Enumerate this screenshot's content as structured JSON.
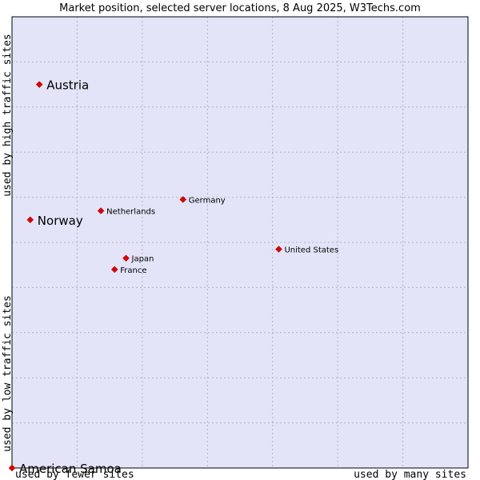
{
  "chart_data": {
    "type": "scatter",
    "title": "Market position, selected server locations, 8 Aug 2025, W3Techs.com",
    "xlabel_low": "used by fewer sites",
    "xlabel_high": "used by many sites",
    "ylabel_low": "used by low traffic sites",
    "ylabel_high": "used by high traffic sites",
    "xlim": [
      0,
      100
    ],
    "ylim": [
      0,
      100
    ],
    "grid": true,
    "colors": {
      "plot_background": "#e4e4f8",
      "grid": "#b0b0cc",
      "point": "#e00000"
    },
    "points": [
      {
        "name": "Austria",
        "x": 6,
        "y": 85,
        "emphasis": true
      },
      {
        "name": "Norway",
        "x": 4,
        "y": 55,
        "emphasis": true
      },
      {
        "name": "American Samoa",
        "x": 0,
        "y": 0,
        "emphasis": true
      },
      {
        "name": "Netherlands",
        "x": 19.5,
        "y": 57,
        "emphasis": false
      },
      {
        "name": "Germany",
        "x": 37.5,
        "y": 59.5,
        "emphasis": false
      },
      {
        "name": "United States",
        "x": 58.5,
        "y": 48.5,
        "emphasis": false
      },
      {
        "name": "Japan",
        "x": 25,
        "y": 46.5,
        "emphasis": false
      },
      {
        "name": "France",
        "x": 22.5,
        "y": 44,
        "emphasis": false
      }
    ]
  }
}
